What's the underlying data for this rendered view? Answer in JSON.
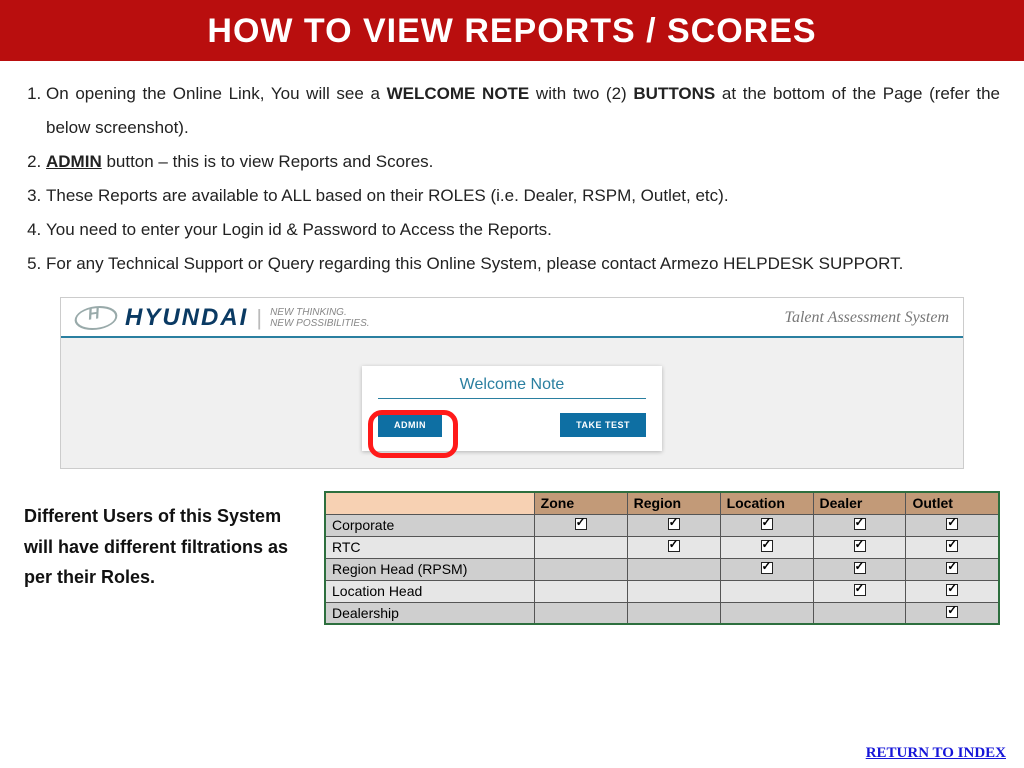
{
  "title": "HOW TO VIEW REPORTS / SCORES",
  "instructions": {
    "i1a": "On opening the Online Link, You will see a ",
    "i1b": "WELCOME NOTE",
    "i1c": " with two (2) ",
    "i1d": "BUTTONS",
    "i1e": " at the bottom of the Page (refer the below screenshot).",
    "i2a": "ADMIN",
    "i2b": " button – this is to view Reports and Scores.",
    "i3": "These Reports are available to ALL based on their ROLES (i.e. Dealer, RSPM, Outlet, etc).",
    "i4": "You need to enter your Login id & Password to Access the Reports.",
    "i5": "For any Technical Support or Query regarding this Online System, please contact Armezo HELPDESK SUPPORT."
  },
  "screenshot": {
    "brand_word": "HYUNDAI",
    "tag1": "NEW THINKING.",
    "tag2": "NEW POSSIBILITIES.",
    "system_name": "Talent Assessment System",
    "welcome_title": "Welcome Note",
    "admin_btn": "ADMIN",
    "take_test_btn": "TAKE TEST"
  },
  "caption": "Different Users of this System will have different filtrations as per their Roles.",
  "table": {
    "columns": [
      "",
      "Zone",
      "Region",
      "Location",
      "Dealer",
      "Outlet"
    ],
    "rows": [
      {
        "name": "Corporate",
        "checks": [
          true,
          true,
          true,
          true,
          true
        ]
      },
      {
        "name": "RTC",
        "checks": [
          false,
          true,
          true,
          true,
          true
        ]
      },
      {
        "name": "Region Head (RPSM)",
        "checks": [
          false,
          false,
          true,
          true,
          true
        ]
      },
      {
        "name": "Location Head",
        "checks": [
          false,
          false,
          false,
          true,
          true
        ]
      },
      {
        "name": "Dealership",
        "checks": [
          false,
          false,
          false,
          false,
          true
        ]
      }
    ]
  },
  "return_link": "RETURN TO INDEX",
  "colors": {
    "title_bg": "#b90e0e",
    "accent_blue": "#0e6fa3",
    "highlight_red": "#ff1a1a",
    "link_blue": "#1515d8",
    "table_border": "#2d6f3e",
    "header_cell": "#c29a78",
    "corner_cell": "#f7d1b3"
  }
}
